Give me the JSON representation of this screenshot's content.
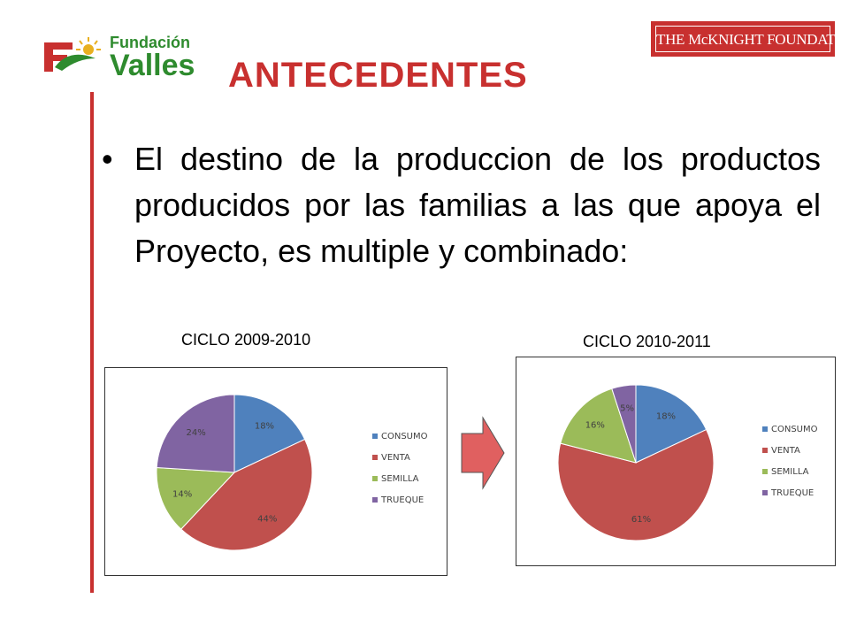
{
  "header": {
    "logo_line1": "Fundación",
    "logo_line2": "Valles",
    "mcknight_logo_text": "THE McKNIGHT FOUNDATION",
    "title": "ANTECEDENTES"
  },
  "bullet": {
    "text": "El destino de la produccion de los productos producidos por las familias a las que apoya el Proyecto, es multiple y combinado:"
  },
  "colors": {
    "accent": "#c8302f",
    "logo_green": "#2e8b2e",
    "consumo": "#4f81bd",
    "venta": "#c0504d",
    "semilla": "#9bbb59",
    "trueque": "#8064a2",
    "arrow": "#e06060"
  },
  "chart_data": [
    {
      "type": "pie",
      "title": "CICLO 2009-2010",
      "categories": [
        "CONSUMO",
        "VENTA",
        "SEMILLA",
        "TRUEQUE"
      ],
      "values": [
        18,
        44,
        14,
        24
      ],
      "labels": [
        "18%",
        "44%",
        "14%",
        "24%"
      ],
      "legend": "right"
    },
    {
      "type": "pie",
      "title": "CICLO 2010-2011",
      "categories": [
        "CONSUMO",
        "VENTA",
        "SEMILLA",
        "TRUEQUE"
      ],
      "values": [
        18,
        61,
        16,
        5
      ],
      "labels": [
        "18%",
        "61%",
        "16%",
        "5%"
      ],
      "legend": "right"
    }
  ],
  "decor": {
    "arrow_icon": "right-arrow-icon"
  }
}
